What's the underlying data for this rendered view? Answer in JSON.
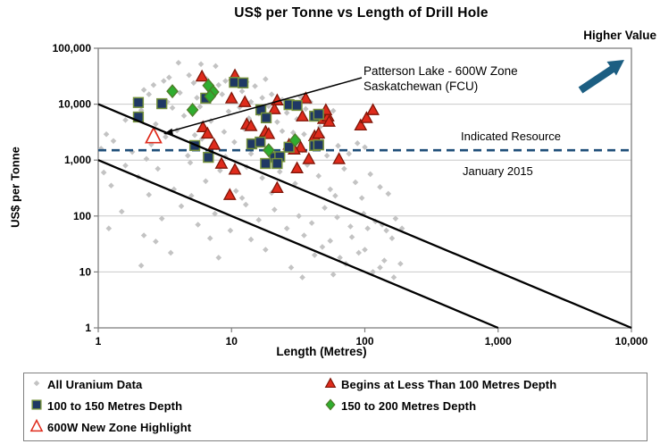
{
  "legend": {
    "items": [
      {
        "label": "All Uranium Data",
        "series": "all_uranium"
      },
      {
        "label": "Begins at Less Than 100 Metres Depth",
        "series": "lt100"
      },
      {
        "label": "100 to 150 Metres Depth",
        "series": "d100_150"
      },
      {
        "label": "150 to 200 Metres Depth",
        "series": "d150_200"
      },
      {
        "label": "600W New Zone Highlight",
        "series": "zone600w"
      }
    ]
  },
  "colors": {
    "frame": "#7F7F7F",
    "gridline": "#C9C9C9",
    "ref_line": "#000000",
    "dashed_line": "#1F4E79",
    "arrow": "#1C5E82",
    "text": "#000000"
  },
  "chart_data": {
    "type": "scatter",
    "title": "US$ per Tonne vs Length of Drill Hole",
    "xlabel": "Length (Metres)",
    "ylabel": "US$ per Tonne",
    "x_scale": "log",
    "y_scale": "log",
    "xlim": [
      1,
      10000
    ],
    "ylim": [
      1,
      100000
    ],
    "grid": "horizontal-only",
    "x_ticks": [
      [
        1,
        "1"
      ],
      [
        10,
        "10"
      ],
      [
        100,
        "100"
      ],
      [
        1000,
        "1,000"
      ],
      [
        10000,
        "10,000"
      ]
    ],
    "y_ticks": [
      [
        1,
        "1"
      ],
      [
        10,
        "10"
      ],
      [
        100,
        "100"
      ],
      [
        1000,
        "1,000"
      ],
      [
        10000,
        "10,000"
      ],
      [
        100000,
        "100,000"
      ]
    ],
    "annotations": {
      "higher_value": "Higher Value",
      "indicated_resource": "Indicated Resource",
      "date": "January 2015",
      "patterson_line1": "Patterson Lake - 600W Zone",
      "patterson_line2": "Saskatchewan (FCU)"
    },
    "indicated_resource_line": {
      "value": 1500,
      "style": "dashed"
    },
    "reference_lines": [
      {
        "from": [
          1,
          10000
        ],
        "to": [
          10000,
          1
        ]
      },
      {
        "from": [
          1,
          1000
        ],
        "to": [
          1000,
          1
        ]
      }
    ],
    "series": [
      {
        "key": "all_uranium",
        "name": "All Uranium Data",
        "marker": "small-diamond",
        "fill": "#C3C3C3",
        "stroke": "none",
        "points": [
          [
            4,
            55000
          ],
          [
            5.9,
            52000
          ],
          [
            7.6,
            48000
          ],
          [
            3.4,
            30000
          ],
          [
            4.8,
            33000
          ],
          [
            6.5,
            28000
          ],
          [
            9,
            26000
          ],
          [
            11,
            30000
          ],
          [
            2.6,
            22000
          ],
          [
            3.1,
            26000
          ],
          [
            5.2,
            24000
          ],
          [
            8,
            22000
          ],
          [
            13,
            25000
          ],
          [
            15,
            21000
          ],
          [
            18,
            28000
          ],
          [
            2.2,
            18000
          ],
          [
            1.9,
            12000
          ],
          [
            2.4,
            15000
          ],
          [
            3.3,
            11000
          ],
          [
            4.1,
            16000
          ],
          [
            5.5,
            13000
          ],
          [
            6.8,
            11500
          ],
          [
            8.5,
            15000
          ],
          [
            10,
            12000
          ],
          [
            12,
            17000
          ],
          [
            14,
            11000
          ],
          [
            17,
            13000
          ],
          [
            20,
            15000
          ],
          [
            24,
            12000
          ],
          [
            28,
            10500
          ],
          [
            33,
            13500
          ],
          [
            39,
            11000
          ],
          [
            2.9,
            10200
          ],
          [
            7.4,
            18000
          ],
          [
            1.6,
            5200
          ],
          [
            2.1,
            7800
          ],
          [
            2.7,
            4400
          ],
          [
            3.6,
            8600
          ],
          [
            4.4,
            6200
          ],
          [
            5.8,
            9000
          ],
          [
            7,
            5000
          ],
          [
            9.5,
            7400
          ],
          [
            11.5,
            8800
          ],
          [
            13.5,
            5600
          ],
          [
            16,
            6800
          ],
          [
            19,
            9200
          ],
          [
            22,
            4800
          ],
          [
            26,
            7000
          ],
          [
            31,
            5400
          ],
          [
            36,
            8200
          ],
          [
            43,
            6400
          ],
          [
            50,
            4600
          ],
          [
            58,
            7600
          ],
          [
            3.9,
            3400
          ],
          [
            6.2,
            3800
          ],
          [
            8.8,
            3200
          ],
          [
            12.5,
            3600
          ],
          [
            24,
            3300
          ],
          [
            46,
            3900
          ],
          [
            29,
            3100
          ],
          [
            1.15,
            2900
          ],
          [
            1.05,
            1600
          ],
          [
            1.3,
            2200
          ],
          [
            1.8,
            1400
          ],
          [
            2.5,
            1900
          ],
          [
            3.2,
            2600
          ],
          [
            4.7,
            1200
          ],
          [
            6,
            2400
          ],
          [
            7.7,
            1700
          ],
          [
            10.5,
            2100
          ],
          [
            14,
            1300
          ],
          [
            18,
            2700
          ],
          [
            21,
            1100
          ],
          [
            27,
            2000
          ],
          [
            34,
            1500
          ],
          [
            41,
            2500
          ],
          [
            52,
            1200
          ],
          [
            63,
            1800
          ],
          [
            76,
            1300
          ],
          [
            2.3,
            1050
          ],
          [
            5.3,
            2800
          ],
          [
            9,
            1150
          ],
          [
            35,
            2900
          ],
          [
            48,
            2600
          ],
          [
            88,
            2000
          ],
          [
            100,
            1700
          ],
          [
            1.1,
            600
          ],
          [
            1.25,
            350
          ],
          [
            1.6,
            800
          ],
          [
            2,
            500
          ],
          [
            2.8,
            700
          ],
          [
            3.7,
            300
          ],
          [
            4.9,
            900
          ],
          [
            6.4,
            420
          ],
          [
            8.2,
            650
          ],
          [
            10.8,
            280
          ],
          [
            13,
            750
          ],
          [
            17,
            480
          ],
          [
            23,
            620
          ],
          [
            30,
            380
          ],
          [
            37,
            820
          ],
          [
            45,
            520
          ],
          [
            55,
            300
          ],
          [
            70,
            700
          ],
          [
            85,
            400
          ],
          [
            110,
            560
          ],
          [
            130,
            330
          ],
          [
            150,
            250
          ],
          [
            2.4,
            240
          ],
          [
            5,
            230
          ],
          [
            12,
            210
          ],
          [
            20,
            260
          ],
          [
            60,
            230
          ],
          [
            95,
            210
          ],
          [
            1.2,
            60
          ],
          [
            1.5,
            120
          ],
          [
            2.2,
            45
          ],
          [
            3,
            90
          ],
          [
            4.2,
            150
          ],
          [
            5.6,
            70
          ],
          [
            7.5,
            110
          ],
          [
            9.8,
            55
          ],
          [
            12.8,
            160
          ],
          [
            16,
            85
          ],
          [
            21,
            130
          ],
          [
            26,
            60
          ],
          [
            32,
            100
          ],
          [
            40,
            75
          ],
          [
            50,
            140
          ],
          [
            62,
            95
          ],
          [
            78,
            65
          ],
          [
            98,
            110
          ],
          [
            120,
            80
          ],
          [
            145,
            55
          ],
          [
            170,
            90
          ],
          [
            2.7,
            35
          ],
          [
            6.9,
            40
          ],
          [
            14,
            38
          ],
          [
            35,
            45
          ],
          [
            55,
            36
          ],
          [
            80,
            42
          ],
          [
            105,
            60
          ],
          [
            135,
            70
          ],
          [
            160,
            40
          ],
          [
            190,
            60
          ],
          [
            2.1,
            13
          ],
          [
            3.5,
            22
          ],
          [
            8,
            18
          ],
          [
            18,
            25
          ],
          [
            28,
            12
          ],
          [
            42,
            20
          ],
          [
            58,
            9
          ],
          [
            72,
            14
          ],
          [
            90,
            22
          ],
          [
            115,
            10
          ],
          [
            140,
            16
          ],
          [
            165,
            8
          ],
          [
            48,
            28
          ],
          [
            65,
            18
          ],
          [
            100,
            25
          ],
          [
            130,
            12
          ],
          [
            34,
            8
          ],
          [
            185,
            14
          ]
        ]
      },
      {
        "key": "lt100",
        "name": "Begins at Less Than 100 Metres Depth",
        "marker": "triangle",
        "fill": "#DF2B1C",
        "stroke": "#7F1608",
        "points": [
          [
            6,
            31500
          ],
          [
            10.6,
            33000
          ],
          [
            10,
            12800
          ],
          [
            12.6,
            11000
          ],
          [
            22,
            11800
          ],
          [
            21,
            8200
          ],
          [
            36,
            12800
          ],
          [
            34,
            6100
          ],
          [
            49,
            5500
          ],
          [
            53,
            6100
          ],
          [
            51,
            7900
          ],
          [
            54,
            4900
          ],
          [
            93,
            4200
          ],
          [
            103,
            5700
          ],
          [
            115,
            7900
          ],
          [
            13,
            4400
          ],
          [
            14,
            4100
          ],
          [
            6.1,
            3900
          ],
          [
            6.6,
            3000
          ],
          [
            7.4,
            1900
          ],
          [
            18,
            3250
          ],
          [
            19,
            2950
          ],
          [
            42,
            2700
          ],
          [
            45,
            3000
          ],
          [
            27,
            1900
          ],
          [
            33,
            1700
          ],
          [
            29.5,
            1560
          ],
          [
            38,
            1050
          ],
          [
            64,
            1050
          ],
          [
            31,
            720
          ],
          [
            8.4,
            870
          ],
          [
            10.6,
            680
          ],
          [
            22,
            320
          ],
          [
            9.7,
            240
          ]
        ]
      },
      {
        "key": "d100_150",
        "name": "100 to 150 Metres Depth",
        "marker": "square",
        "fill": "#1F3864",
        "stroke": "#77933C",
        "points": [
          [
            2,
            10700
          ],
          [
            3,
            10200
          ],
          [
            2,
            5900
          ],
          [
            10.5,
            24600
          ],
          [
            12.2,
            24000
          ],
          [
            6.4,
            12800
          ],
          [
            16.6,
            7900
          ],
          [
            18.2,
            5700
          ],
          [
            27,
            9800
          ],
          [
            31,
            9500
          ],
          [
            42,
            6100
          ],
          [
            45,
            6600
          ],
          [
            5.3,
            1820
          ],
          [
            6.7,
            1120
          ],
          [
            14.2,
            1950
          ],
          [
            16.4,
            2100
          ],
          [
            27,
            1700
          ],
          [
            42,
            1820
          ],
          [
            45,
            1870
          ],
          [
            21,
            1120
          ],
          [
            23,
            1150
          ],
          [
            18,
            870
          ],
          [
            22,
            870
          ]
        ]
      },
      {
        "key": "d150_200",
        "name": "150 to 200 Metres Depth",
        "marker": "diamond",
        "fill": "#2FAD2F",
        "stroke": "#4F7A28",
        "points": [
          [
            3.6,
            17000
          ],
          [
            6.7,
            21500
          ],
          [
            7.3,
            16500
          ],
          [
            5.1,
            7900
          ],
          [
            30,
            2260
          ],
          [
            19,
            1500
          ],
          [
            6.9,
            13800
          ]
        ]
      },
      {
        "key": "zone600w",
        "name": "600W New Zone Highlight",
        "marker": "open-triangle",
        "fill": "#FFFFFF",
        "stroke": "#DF2B1C",
        "points": [
          [
            2.6,
            2700
          ]
        ]
      }
    ]
  }
}
